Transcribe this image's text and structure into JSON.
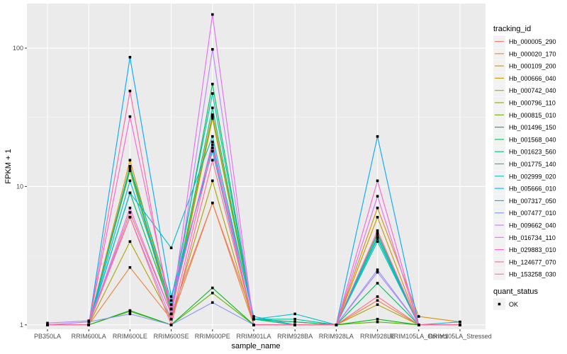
{
  "chart_data": {
    "type": "line",
    "xlabel": "sample_name",
    "ylabel": "FPKM + 1",
    "y_scale": "log",
    "ylim": [
      0.93,
      210
    ],
    "y_ticks": [
      {
        "value": 1,
        "label": "1"
      },
      {
        "value": 10,
        "label": "10"
      },
      {
        "value": 100,
        "label": "100"
      }
    ],
    "categories": [
      "PB350LA",
      "RRIM600LA",
      "RRIM600LE",
      "RRIM600SE",
      "RRIM600PE",
      "RRIM901LA",
      "RRIM928BA",
      "RRIM928LA",
      "RRIM928LE",
      "RRIM105LA_Control",
      "RRIM105LA_Stressed"
    ],
    "legend": {
      "title": "tracking_id",
      "position": "right"
    },
    "shape_legend": {
      "title": "quant_status",
      "entries": [
        "OK"
      ]
    },
    "series": [
      {
        "name": "Hb_000005_290",
        "color": "#F8766D",
        "values": [
          1.0,
          1.0,
          6.5,
          1.2,
          7.6,
          1.1,
          1.0,
          1.0,
          4.6,
          1.0,
          1.0
        ]
      },
      {
        "name": "Hb_000020_170",
        "color": "#EC8239",
        "values": [
          1.0,
          1.0,
          2.6,
          1.1,
          7.6,
          1.0,
          1.0,
          1.0,
          1.5,
          1.0,
          1.0
        ]
      },
      {
        "name": "Hb_000109_200",
        "color": "#DB8E00",
        "values": [
          1.0,
          1.0,
          15.5,
          1.3,
          33.0,
          1.1,
          1.0,
          1.0,
          7.0,
          1.15,
          1.05
        ]
      },
      {
        "name": "Hb_000666_040",
        "color": "#C79800",
        "values": [
          1.0,
          1.0,
          14.0,
          1.2,
          31.0,
          1.1,
          1.0,
          1.0,
          6.0,
          1.0,
          1.0
        ]
      },
      {
        "name": "Hb_000742_040",
        "color": "#AEA200",
        "values": [
          1.0,
          1.0,
          4.0,
          1.1,
          11.0,
          1.0,
          1.0,
          1.0,
          1.4,
          1.0,
          1.0
        ]
      },
      {
        "name": "Hb_000796_110",
        "color": "#8FAA00",
        "values": [
          1.0,
          1.0,
          13.0,
          1.2,
          32.0,
          1.1,
          1.05,
          1.0,
          4.6,
          1.0,
          1.0
        ]
      },
      {
        "name": "Hb_000815_010",
        "color": "#64B200",
        "values": [
          1.0,
          1.0,
          1.25,
          1.0,
          1.7,
          1.0,
          1.0,
          1.0,
          1.05,
          1.0,
          1.0
        ]
      },
      {
        "name": "Hb_001496_150",
        "color": "#00B81B",
        "values": [
          1.0,
          1.0,
          1.27,
          1.0,
          1.85,
          1.0,
          1.0,
          1.0,
          1.1,
          1.0,
          1.0
        ]
      },
      {
        "name": "Hb_001568_040",
        "color": "#00BD5C",
        "values": [
          1.0,
          1.0,
          9.0,
          1.3,
          55.0,
          1.1,
          1.05,
          1.0,
          2.0,
          1.0,
          1.0
        ]
      },
      {
        "name": "Hb_001623_560",
        "color": "#00C085",
        "values": [
          1.0,
          1.0,
          13.5,
          1.3,
          37.0,
          1.1,
          1.0,
          1.0,
          4.3,
          1.0,
          1.0
        ]
      },
      {
        "name": "Hb_001775_140",
        "color": "#00C1A7",
        "values": [
          1.0,
          1.0,
          14.0,
          1.5,
          47.0,
          1.1,
          1.1,
          1.0,
          4.0,
          1.0,
          1.0
        ]
      },
      {
        "name": "Hb_002999_020",
        "color": "#00BFC4",
        "values": [
          1.0,
          1.0,
          9.0,
          3.6,
          23.0,
          1.1,
          1.2,
          1.0,
          4.2,
          1.0,
          1.0
        ]
      },
      {
        "name": "Hb_005666_010",
        "color": "#00B8E3",
        "values": [
          1.0,
          1.0,
          11.0,
          1.4,
          20.0,
          1.15,
          1.0,
          1.0,
          4.5,
          1.0,
          1.05
        ]
      },
      {
        "name": "Hb_007317_050",
        "color": "#00A9FF",
        "values": [
          1.0,
          1.0,
          86.0,
          1.6,
          18.0,
          1.0,
          1.0,
          1.0,
          23.0,
          1.0,
          1.0
        ]
      },
      {
        "name": "Hb_007477_010",
        "color": "#8B93FF",
        "values": [
          1.0,
          1.05,
          1.2,
          1.0,
          1.45,
          1.0,
          1.0,
          1.0,
          2.5,
          1.0,
          1.0
        ]
      },
      {
        "name": "Hb_009662_040",
        "color": "#B983FF",
        "values": [
          1.03,
          1.07,
          6.0,
          1.1,
          98.0,
          1.0,
          1.0,
          1.0,
          2.4,
          1.0,
          1.0
        ]
      },
      {
        "name": "Hb_016734_110",
        "color": "#E76BF3",
        "values": [
          1.0,
          1.0,
          7.0,
          1.2,
          175.0,
          1.0,
          1.0,
          1.0,
          8.5,
          1.0,
          1.0
        ]
      },
      {
        "name": "Hb_029883_010",
        "color": "#FD61D1",
        "values": [
          1.0,
          1.0,
          32.0,
          1.3,
          21.0,
          1.0,
          1.0,
          1.0,
          11.0,
          1.0,
          1.0
        ]
      },
      {
        "name": "Hb_124677_070",
        "color": "#FF67A4",
        "values": [
          1.0,
          1.0,
          49.0,
          1.1,
          19.0,
          1.0,
          1.0,
          1.0,
          4.8,
          1.0,
          1.0
        ]
      },
      {
        "name": "Hb_153258_030",
        "color": "#FF6C91",
        "values": [
          1.0,
          1.0,
          6.0,
          1.0,
          15.5,
          1.0,
          1.0,
          1.0,
          1.6,
          1.0,
          1.0
        ]
      }
    ]
  }
}
